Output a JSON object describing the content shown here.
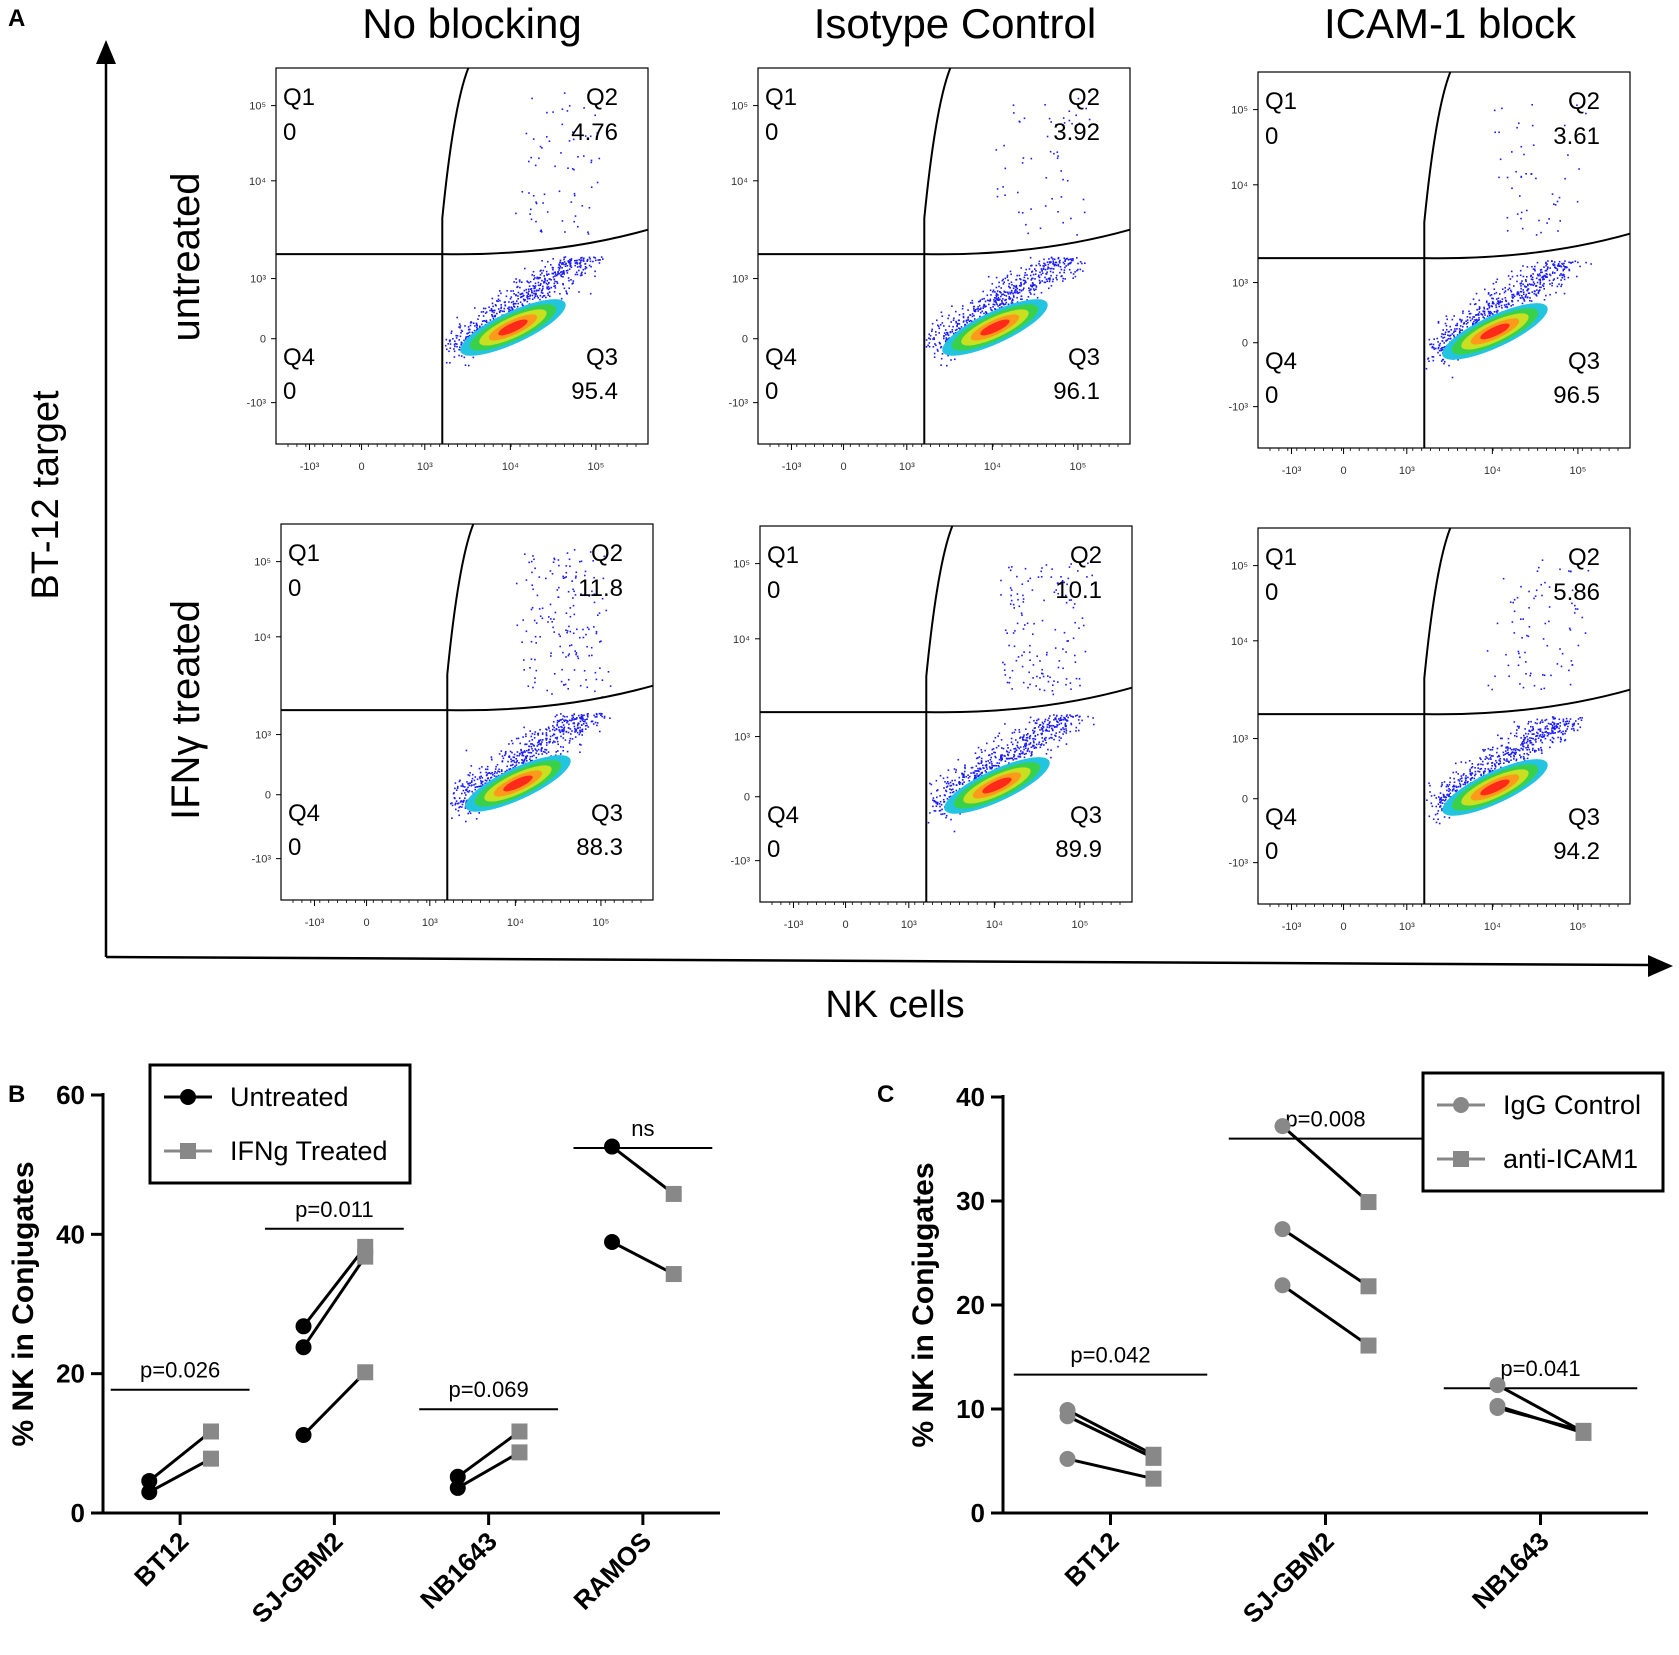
{
  "colors": {
    "black": "#000000",
    "gray": "#888888",
    "dot_blue": "#1a1aff"
  },
  "panel_a": {
    "label": "A",
    "columns": [
      "No blocking",
      "Isotype Control",
      "ICAM-1 block"
    ],
    "rows": [
      "untreated",
      "IFNγ treated"
    ],
    "y_axis_title": "BT-12 target",
    "x_axis_title": "NK cells",
    "y_tick_labels": [
      "10⁵",
      "10⁴",
      "10³",
      "0",
      "-10³"
    ],
    "x_tick_labels": [
      "-10³",
      "0",
      "10³",
      "10⁴",
      "10⁵"
    ],
    "plots": [
      {
        "q1": "0",
        "q2": "4.76",
        "q3": "95.4",
        "q4": "0"
      },
      {
        "q1": "0",
        "q2": "3.92",
        "q3": "96.1",
        "q4": "0"
      },
      {
        "q1": "0",
        "q2": "3.61",
        "q3": "96.5",
        "q4": "0"
      },
      {
        "q1": "0",
        "q2": "11.8",
        "q3": "88.3",
        "q4": "0"
      },
      {
        "q1": "0",
        "q2": "10.1",
        "q3": "89.9",
        "q4": "0"
      },
      {
        "q1": "0",
        "q2": "5.86",
        "q3": "94.2",
        "q4": "0"
      }
    ],
    "quadrant_names": [
      "Q1",
      "Q2",
      "Q3",
      "Q4"
    ]
  },
  "chart_data": [
    {
      "panel": "B",
      "type": "scatter",
      "ylabel": "% NK in Conjugates",
      "ylim": [
        0,
        60
      ],
      "yticks": [
        0,
        20,
        40,
        60
      ],
      "categories": [
        "BT12",
        "SJ-GBM2",
        "NB1643",
        "RAMOS"
      ],
      "legend": [
        "Untreated",
        "IFNg Treated"
      ],
      "legend_position": "top-left",
      "pairs": [
        [
          [
            4.6,
            11.7
          ],
          [
            3.0,
            7.8
          ]
        ],
        [
          [
            26.8,
            38.2
          ],
          [
            23.8,
            36.8
          ],
          [
            11.2,
            20.2
          ]
        ],
        [
          [
            5.2,
            11.7
          ],
          [
            3.6,
            8.7
          ]
        ],
        [
          [
            52.6,
            45.8
          ],
          [
            38.9,
            34.3
          ]
        ]
      ],
      "annotations": [
        "p=0.026",
        "p=0.011",
        "p=0.069",
        "ns"
      ],
      "annotation_levels": [
        17.7,
        40.8,
        14.9,
        52.4
      ]
    },
    {
      "panel": "C",
      "type": "scatter",
      "ylabel": "% NK in Conjugates",
      "ylim": [
        0,
        40
      ],
      "yticks": [
        0,
        10,
        20,
        30,
        40
      ],
      "categories": [
        "BT12",
        "SJ-GBM2",
        "NB1643"
      ],
      "legend": [
        "IgG Control",
        "anti-ICAM1"
      ],
      "legend_position": "top-right",
      "pairs": [
        [
          [
            9.9,
            5.6
          ],
          [
            9.3,
            5.3
          ],
          [
            5.2,
            3.3
          ]
        ],
        [
          [
            37.2,
            29.9
          ],
          [
            27.3,
            21.8
          ],
          [
            21.9,
            16.1
          ]
        ],
        [
          [
            12.3,
            7.8
          ],
          [
            10.1,
            7.9
          ],
          [
            10.3,
            7.7
          ]
        ]
      ],
      "annotations": [
        "p=0.042",
        "p=0.008",
        "p=0.041"
      ],
      "annotation_levels": [
        13.3,
        36.0,
        12.0
      ]
    }
  ]
}
